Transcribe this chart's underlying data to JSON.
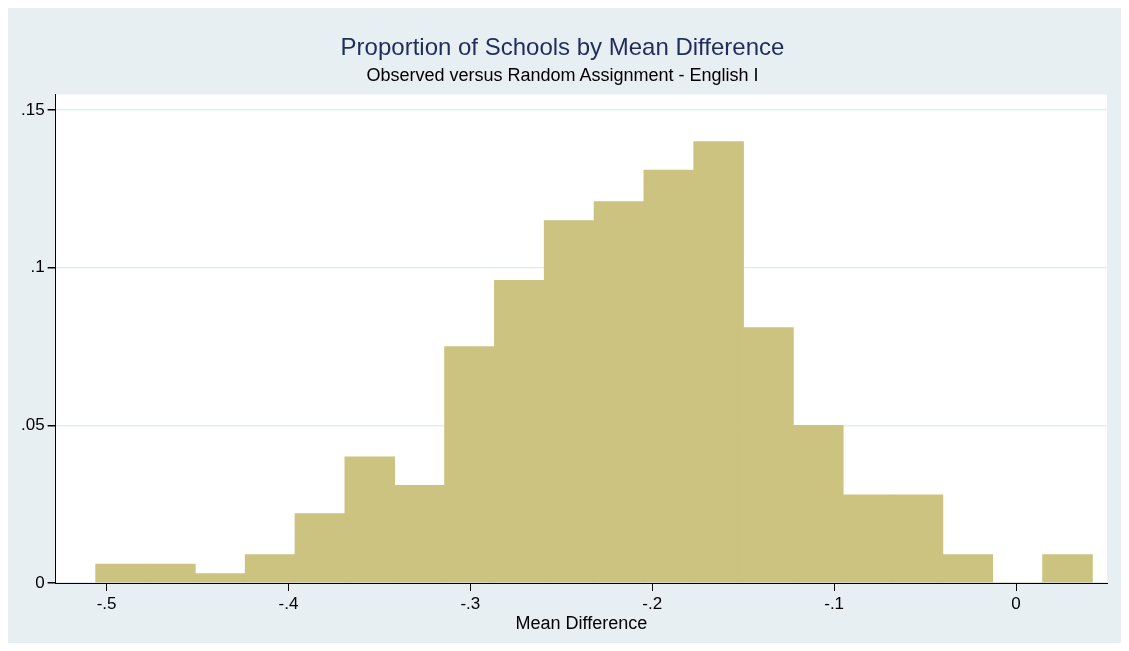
{
  "chart_data": {
    "type": "histogram",
    "title": "Proportion of Schools by Mean Difference",
    "subtitle": "Observed versus Random Assignment - English I",
    "xlabel": "Mean Difference",
    "bins": [
      -0.506,
      -0.4786,
      -0.4512,
      -0.4238,
      -0.3964,
      -0.369,
      -0.3416,
      -0.3142,
      -0.2868,
      -0.2594,
      -0.232,
      -0.2046,
      -0.1772,
      -0.1498,
      -0.1224,
      -0.095,
      -0.0676,
      -0.0402,
      -0.0128,
      0.0146,
      0.042
    ],
    "values": [
      0.006,
      0.006,
      0.003,
      0.009,
      0.022,
      0.04,
      0.031,
      0.075,
      0.096,
      0.115,
      0.121,
      0.131,
      0.14,
      0.081,
      0.05,
      0.028,
      0.028,
      0.009,
      0,
      0.009
    ],
    "color": "#cbc37f",
    "xlim": [
      -0.528,
      0.05
    ],
    "xticks": [
      {
        "value": -0.5,
        "label": "-.5"
      },
      {
        "value": -0.4,
        "label": "-.4"
      },
      {
        "value": -0.3,
        "label": "-.3"
      },
      {
        "value": -0.2,
        "label": "-.2"
      },
      {
        "value": -0.1,
        "label": "-.1"
      },
      0
    ],
    "ylim": [
      0,
      0.155
    ],
    "yticks": [
      0,
      {
        "value": 0.05,
        "label": ".05"
      },
      {
        "value": 0.1,
        "label": ".1"
      },
      {
        "value": 0.15,
        "label": ".15"
      }
    ],
    "grid": "y"
  }
}
